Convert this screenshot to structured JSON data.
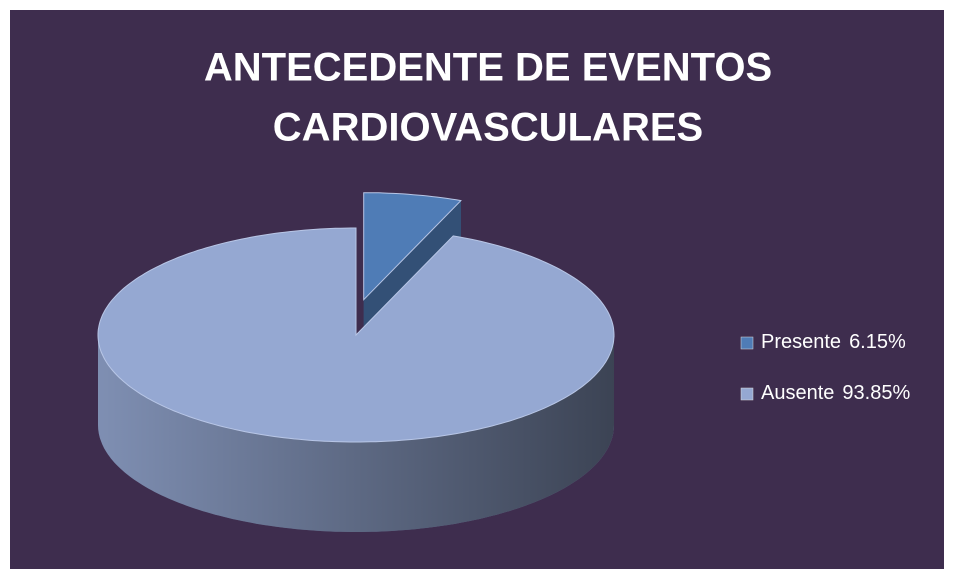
{
  "chart_data": {
    "type": "pie3d",
    "title": [
      "ANTECEDENTE DE EVENTOS",
      "CARDIOVASCULARES"
    ],
    "categories": [
      "Presente",
      "Ausente"
    ],
    "values": [
      6.15,
      93.85
    ],
    "value_labels": [
      "6.15%",
      "93.85%"
    ],
    "colors": [
      "#4f7cb6",
      "#95a8d2"
    ],
    "exploded": [
      true,
      false
    ],
    "background": "#3e2d4e",
    "legend": "right"
  }
}
